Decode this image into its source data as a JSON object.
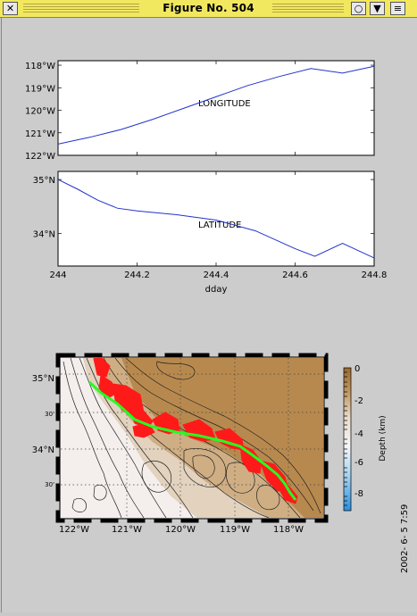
{
  "window": {
    "title": "Figure No. 504",
    "close_glyph": "✕",
    "minimize_glyph": "○",
    "menu_glyph": "▼",
    "maximize_glyph": "≡"
  },
  "chart_data": [
    {
      "type": "line",
      "label": "LONGITUDE",
      "x": [
        244.0,
        244.08,
        244.16,
        244.24,
        244.32,
        244.4,
        244.48,
        244.56,
        244.64,
        244.72,
        244.8
      ],
      "y": [
        -121.5,
        -121.2,
        -120.85,
        -120.4,
        -119.9,
        -119.4,
        -118.9,
        -118.5,
        -118.15,
        -118.35,
        -118.05
      ],
      "ylim": [
        -122,
        -117.8
      ],
      "xlim": [
        244,
        244.8
      ],
      "yticks": [
        "118°W",
        "119°W",
        "120°W",
        "121°W",
        "122°W"
      ]
    },
    {
      "type": "line",
      "label": "LATITUDE",
      "x": [
        244.0,
        244.05,
        244.1,
        244.15,
        244.2,
        244.3,
        244.4,
        244.5,
        244.6,
        244.65,
        244.72,
        244.8
      ],
      "y": [
        35.0,
        34.82,
        34.62,
        34.47,
        34.42,
        34.35,
        34.25,
        34.05,
        33.72,
        33.58,
        33.82,
        33.55
      ],
      "ylim": [
        33.4,
        35.15
      ],
      "xlim": [
        244,
        244.8
      ],
      "yticks": [
        "35°N",
        "34°N"
      ],
      "xticks": [
        "244",
        "244.2",
        "244.4",
        "244.6",
        "244.8"
      ],
      "xlabel": "dday"
    }
  ],
  "map": {
    "lat_labels": [
      "35°N",
      "30'",
      "34°N",
      "30'"
    ],
    "lon_labels": [
      "122°W",
      "121°W",
      "120°W",
      "119°W",
      "118°W"
    ],
    "colorbar_ticks": [
      "0",
      "-2",
      "-4",
      "-6",
      "-8"
    ],
    "colorbar_label": "Depth (km)",
    "land_color": "#b8894e",
    "track_color": "#22ff22",
    "vector_color": "#ff1a1a"
  },
  "timestamp": "2002- 6- 5   7:59"
}
